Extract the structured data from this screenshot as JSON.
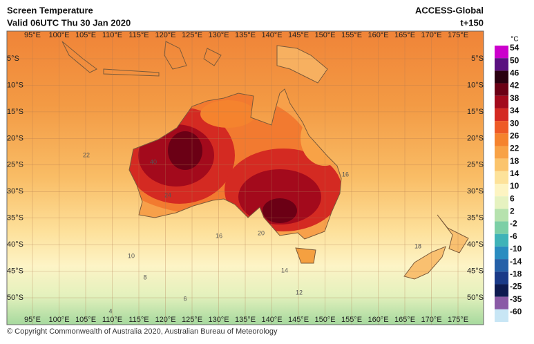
{
  "header": {
    "title": "Screen Temperature",
    "valid": "Valid 06UTC Thu 30 Jan 2020",
    "model": "ACCESS-Global",
    "lead_time": "t+150"
  },
  "map": {
    "longitude_labels": [
      "95°E",
      "100°E",
      "105°E",
      "110°E",
      "115°E",
      "120°E",
      "125°E",
      "130°E",
      "135°E",
      "140°E",
      "145°E",
      "150°E",
      "155°E",
      "160°E",
      "165°E",
      "170°E",
      "175°E"
    ],
    "latitude_labels": [
      "5°S",
      "10°S",
      "15°S",
      "20°S",
      "25°S",
      "30°S",
      "35°S",
      "40°S",
      "45°S",
      "50°S"
    ],
    "contour_labels": [
      "22",
      "40",
      "24",
      "20",
      "16",
      "10",
      "8",
      "6",
      "4",
      "14",
      "12",
      "18",
      "16"
    ]
  },
  "colorbar": {
    "unit": "°C",
    "levels": [
      {
        "value": 54,
        "color": "#cc00cc"
      },
      {
        "value": 50,
        "color": "#5a1080"
      },
      {
        "value": 46,
        "color": "#2a0010"
      },
      {
        "value": 42,
        "color": "#6b0015"
      },
      {
        "value": 38,
        "color": "#a30a1c"
      },
      {
        "value": 34,
        "color": "#d42a22"
      },
      {
        "value": 30,
        "color": "#ee5a26"
      },
      {
        "value": 26,
        "color": "#f5832e"
      },
      {
        "value": 22,
        "color": "#f8a246"
      },
      {
        "value": 18,
        "color": "#fbc46c"
      },
      {
        "value": 14,
        "color": "#fde29a"
      },
      {
        "value": 10,
        "color": "#fdf4c2"
      },
      {
        "value": 6,
        "color": "#e6f2c0"
      },
      {
        "value": 2,
        "color": "#b6e2ae"
      },
      {
        "value": -2,
        "color": "#7ccfa6"
      },
      {
        "value": -6,
        "color": "#3fb3b8"
      },
      {
        "value": -10,
        "color": "#2a8cc0"
      },
      {
        "value": -14,
        "color": "#2460a8"
      },
      {
        "value": -18,
        "color": "#1a3a88"
      },
      {
        "value": -25,
        "color": "#0d1a50"
      },
      {
        "value": -35,
        "color": "#8a5aa6"
      },
      {
        "value": -60,
        "color": "#c8e6f5"
      }
    ]
  },
  "footer": {
    "copyright": "© Copyright Commonwealth of Australia 2020, Australian Bureau of Meteorology"
  }
}
